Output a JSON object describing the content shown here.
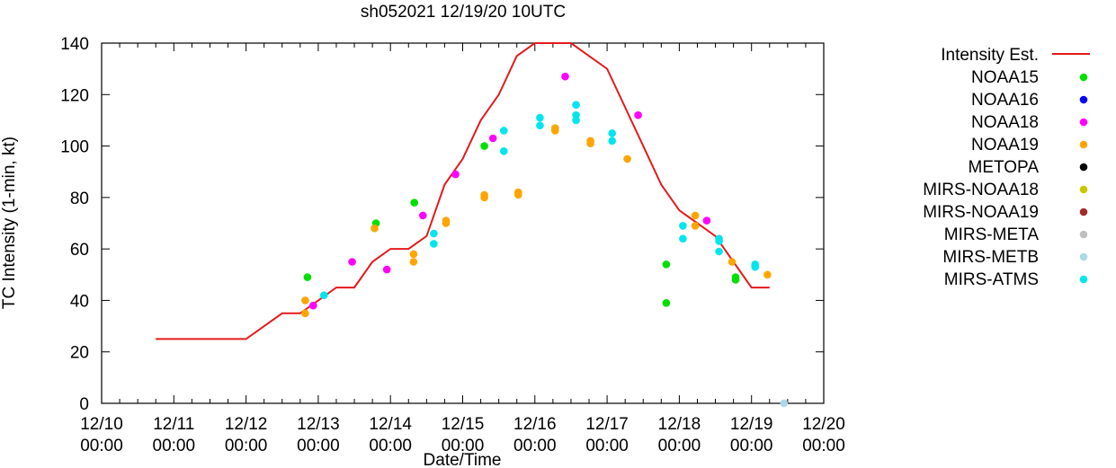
{
  "chart_data": {
    "type": "scatter",
    "title": "sh052021 12/19/20 10UTC",
    "xlabel": "Date/Time",
    "ylabel": "TC Intensity (1-min, kt)",
    "xlim": [
      0,
      10
    ],
    "ylim": [
      0,
      140
    ],
    "xticks": [
      {
        "x": 0,
        "date": "12/10",
        "time": "00:00"
      },
      {
        "x": 1,
        "date": "12/11",
        "time": "00:00"
      },
      {
        "x": 2,
        "date": "12/12",
        "time": "00:00"
      },
      {
        "x": 3,
        "date": "12/13",
        "time": "00:00"
      },
      {
        "x": 4,
        "date": "12/14",
        "time": "00:00"
      },
      {
        "x": 5,
        "date": "12/15",
        "time": "00:00"
      },
      {
        "x": 6,
        "date": "12/16",
        "time": "00:00"
      },
      {
        "x": 7,
        "date": "12/17",
        "time": "00:00"
      },
      {
        "x": 8,
        "date": "12/18",
        "time": "00:00"
      },
      {
        "x": 9,
        "date": "12/19",
        "time": "00:00"
      },
      {
        "x": 10,
        "date": "12/20",
        "time": "00:00"
      }
    ],
    "yticks": [
      0,
      20,
      40,
      60,
      80,
      100,
      120,
      140
    ],
    "legend_position": "right",
    "series": [
      {
        "name": "Intensity Est.",
        "kind": "line",
        "color": "#e41a1c",
        "points": [
          [
            0.75,
            25
          ],
          [
            2.0,
            25
          ],
          [
            2.5,
            35
          ],
          [
            2.75,
            35
          ],
          [
            3.0,
            40
          ],
          [
            3.25,
            45
          ],
          [
            3.5,
            45
          ],
          [
            3.75,
            55
          ],
          [
            4.0,
            60
          ],
          [
            4.25,
            60
          ],
          [
            4.5,
            65
          ],
          [
            4.75,
            85
          ],
          [
            5.0,
            95
          ],
          [
            5.25,
            110
          ],
          [
            5.5,
            120
          ],
          [
            5.75,
            135
          ],
          [
            6.0,
            140
          ],
          [
            6.25,
            140
          ],
          [
            6.5,
            140
          ],
          [
            6.75,
            135
          ],
          [
            7.0,
            130
          ],
          [
            7.25,
            115
          ],
          [
            7.5,
            100
          ],
          [
            7.75,
            85
          ],
          [
            8.0,
            75
          ],
          [
            8.25,
            70
          ],
          [
            8.5,
            65
          ],
          [
            8.75,
            55
          ],
          [
            9.0,
            45
          ],
          [
            9.25,
            45
          ]
        ]
      },
      {
        "name": "NOAA15",
        "kind": "point",
        "color": "#00e000",
        "points": [
          [
            2.85,
            49
          ],
          [
            3.8,
            70
          ],
          [
            4.33,
            78
          ],
          [
            5.3,
            100
          ],
          [
            7.82,
            54
          ],
          [
            7.82,
            39
          ],
          [
            8.78,
            49
          ],
          [
            8.78,
            48
          ]
        ]
      },
      {
        "name": "NOAA16",
        "kind": "point",
        "color": "#0000ff",
        "points": []
      },
      {
        "name": "NOAA18",
        "kind": "point",
        "color": "#ff00ff",
        "points": [
          [
            2.93,
            38
          ],
          [
            3.47,
            55
          ],
          [
            3.95,
            52
          ],
          [
            4.45,
            73
          ],
          [
            4.9,
            89
          ],
          [
            5.42,
            103
          ],
          [
            6.42,
            127
          ],
          [
            7.43,
            112
          ],
          [
            8.38,
            71
          ]
        ]
      },
      {
        "name": "NOAA19",
        "kind": "point",
        "color": "#ffa500",
        "points": [
          [
            2.82,
            40
          ],
          [
            2.82,
            35
          ],
          [
            3.78,
            68
          ],
          [
            4.32,
            58
          ],
          [
            4.32,
            55
          ],
          [
            4.77,
            71
          ],
          [
            4.77,
            70
          ],
          [
            5.3,
            81
          ],
          [
            5.3,
            80
          ],
          [
            5.77,
            82
          ],
          [
            5.77,
            81
          ],
          [
            6.28,
            107
          ],
          [
            6.28,
            106
          ],
          [
            6.77,
            102
          ],
          [
            6.77,
            101
          ],
          [
            7.28,
            95
          ],
          [
            8.22,
            73
          ],
          [
            8.22,
            69
          ],
          [
            8.73,
            55
          ],
          [
            9.22,
            50
          ]
        ]
      },
      {
        "name": "METOPA",
        "kind": "point",
        "color": "#000000",
        "points": []
      },
      {
        "name": "MIRS-NOAA18",
        "kind": "point",
        "color": "#c8c800",
        "points": []
      },
      {
        "name": "MIRS-NOAA19",
        "kind": "point",
        "color": "#a52a2a",
        "points": []
      },
      {
        "name": "MIRS-META",
        "kind": "point",
        "color": "#bebebe",
        "points": []
      },
      {
        "name": "MIRS-METB",
        "kind": "point",
        "color": "#add8e6",
        "points": [
          [
            9.45,
            0
          ]
        ]
      },
      {
        "name": "MIRS-ATMS",
        "kind": "point",
        "color": "#00e5ee",
        "points": [
          [
            3.08,
            42
          ],
          [
            4.6,
            66
          ],
          [
            4.6,
            62
          ],
          [
            5.57,
            106
          ],
          [
            5.57,
            98
          ],
          [
            6.07,
            111
          ],
          [
            6.07,
            108
          ],
          [
            6.57,
            116
          ],
          [
            6.57,
            112
          ],
          [
            6.57,
            110
          ],
          [
            7.07,
            105
          ],
          [
            7.07,
            102
          ],
          [
            8.05,
            69
          ],
          [
            8.05,
            64
          ],
          [
            8.55,
            64
          ],
          [
            8.55,
            63
          ],
          [
            8.55,
            59
          ],
          [
            9.05,
            54
          ],
          [
            9.05,
            53
          ]
        ]
      }
    ]
  }
}
